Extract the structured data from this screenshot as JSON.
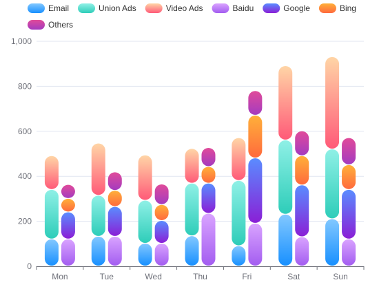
{
  "chart_data": {
    "type": "bar",
    "stacked": true,
    "categories": [
      "Mon",
      "Tue",
      "Wed",
      "Thu",
      "Fri",
      "Sat",
      "Sun"
    ],
    "ylim": [
      0,
      1000
    ],
    "yticks": [
      0,
      200,
      400,
      600,
      800,
      1000
    ],
    "ytick_labels": [
      "0",
      "200",
      "400",
      "600",
      "800",
      "1,000"
    ],
    "grid": true,
    "legend_position": "top-left",
    "stacks": [
      {
        "stack": "left",
        "series": [
          {
            "name": "Email",
            "values": [
              120,
              132,
              101,
              134,
              90,
              230,
              210
            ],
            "colors": [
              "#82c8ff",
              "#1890ff"
            ]
          },
          {
            "name": "Union Ads",
            "values": [
              220,
              182,
              191,
              234,
              290,
              330,
              310
            ],
            "colors": [
              "#8ff0e6",
              "#2ecdb9"
            ]
          },
          {
            "name": "Video Ads",
            "values": [
              150,
              232,
              201,
              154,
              190,
              330,
              410
            ],
            "colors": [
              "#ffd5a6",
              "#ff5a78"
            ]
          }
        ]
      },
      {
        "stack": "right",
        "series": [
          {
            "name": "Baidu",
            "values": [
              120,
              132,
              101,
              234,
              190,
              130,
              120
            ],
            "colors": [
              "#d9a3ff",
              "#a35df0"
            ]
          },
          {
            "name": "Google",
            "values": [
              120,
              132,
              101,
              134,
              290,
              230,
              220
            ],
            "colors": [
              "#5a8cff",
              "#8a1fd6"
            ]
          },
          {
            "name": "Bing",
            "values": [
              60,
              72,
              71,
              74,
              190,
              130,
              110
            ],
            "colors": [
              "#ffb03a",
              "#ff6a3d"
            ]
          },
          {
            "name": "Others",
            "values": [
              62,
              82,
              91,
              84,
              109,
              110,
              120
            ],
            "colors": [
              "#e04b9a",
              "#a43bc0"
            ]
          }
        ]
      }
    ],
    "legend": [
      "Email",
      "Union Ads",
      "Video Ads",
      "Baidu",
      "Google",
      "Bing",
      "Others"
    ]
  }
}
